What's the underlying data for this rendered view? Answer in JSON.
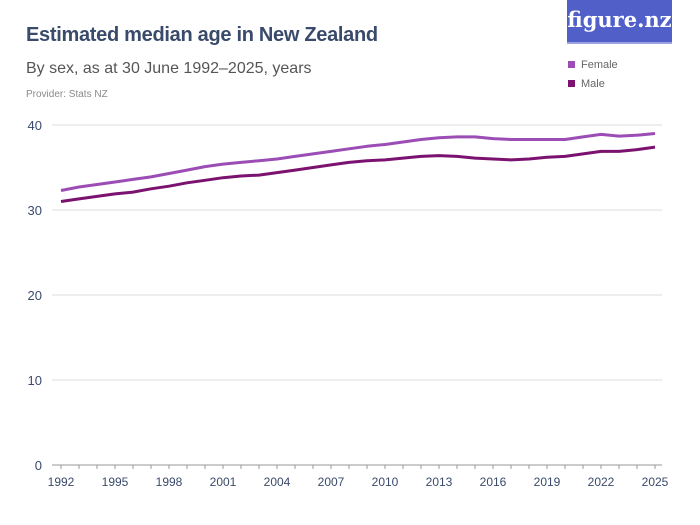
{
  "header": {
    "title": "Estimated median age in New Zealand",
    "subtitle": "By sex, as at 30 June 1992–2025, years",
    "provider": "Provider: Stats NZ",
    "logo": "figure.nz"
  },
  "chart_data": {
    "type": "line",
    "title": "Estimated median age in New Zealand",
    "x": [
      1992,
      1993,
      1994,
      1995,
      1996,
      1997,
      1998,
      1999,
      2000,
      2001,
      2002,
      2003,
      2004,
      2005,
      2006,
      2007,
      2008,
      2009,
      2010,
      2011,
      2012,
      2013,
      2014,
      2015,
      2016,
      2017,
      2018,
      2019,
      2020,
      2021,
      2022,
      2023,
      2024,
      2025
    ],
    "xticks": [
      "1992",
      "1995",
      "1998",
      "2001",
      "2004",
      "2007",
      "2010",
      "2013",
      "2016",
      "2019",
      "2022",
      "2025"
    ],
    "yticks": [
      "0",
      "10",
      "20",
      "30",
      "40"
    ],
    "ylim": [
      0,
      40
    ],
    "grid": true,
    "legend": "top-right",
    "series": [
      {
        "name": "Female",
        "color": "#9b4db5",
        "values": [
          32.3,
          32.7,
          33.0,
          33.3,
          33.6,
          33.9,
          34.3,
          34.7,
          35.1,
          35.4,
          35.6,
          35.8,
          36.0,
          36.3,
          36.6,
          36.9,
          37.2,
          37.5,
          37.7,
          38.0,
          38.3,
          38.5,
          38.6,
          38.6,
          38.4,
          38.3,
          38.3,
          38.3,
          38.3,
          38.6,
          38.9,
          38.7,
          38.8,
          39.0
        ]
      },
      {
        "name": "Male",
        "color": "#7b1270",
        "values": [
          31.0,
          31.3,
          31.6,
          31.9,
          32.1,
          32.5,
          32.8,
          33.2,
          33.5,
          33.8,
          34.0,
          34.1,
          34.4,
          34.7,
          35.0,
          35.3,
          35.6,
          35.8,
          35.9,
          36.1,
          36.3,
          36.4,
          36.3,
          36.1,
          36.0,
          35.9,
          36.0,
          36.2,
          36.3,
          36.6,
          36.9,
          36.9,
          37.1,
          37.4
        ]
      }
    ]
  }
}
